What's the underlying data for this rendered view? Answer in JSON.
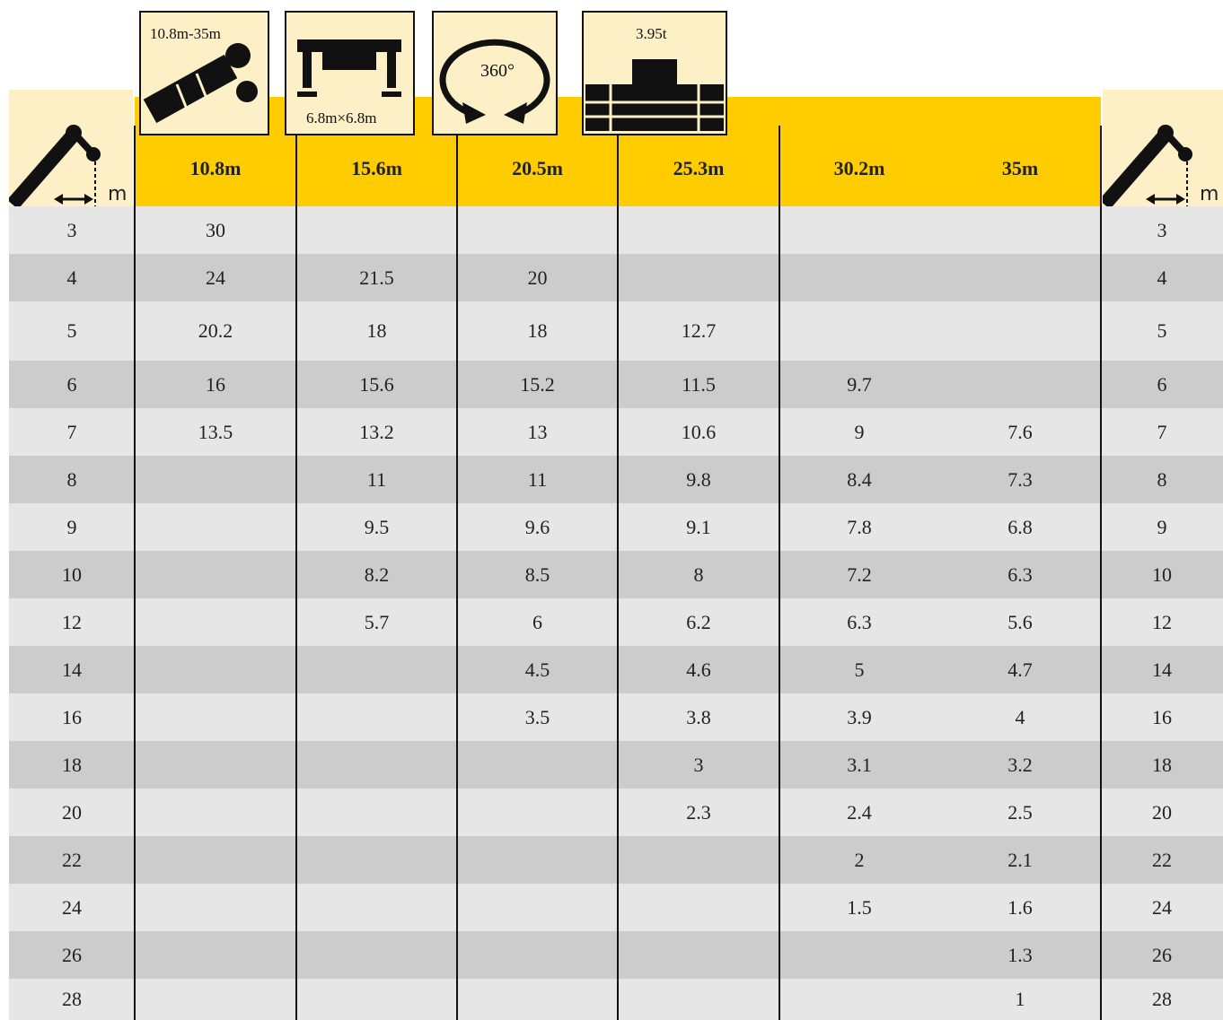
{
  "icons": [
    "10.8m-35m",
    "6.8m×6.8m",
    "360°",
    "3.95t"
  ],
  "unit": "m",
  "table": {
    "columns": [
      "10.8m",
      "15.6m",
      "20.5m",
      "25.3m",
      "30.2m",
      "35m"
    ],
    "rows": [
      {
        "radius": 3,
        "loads": [
          30,
          null,
          null,
          null,
          null,
          null
        ]
      },
      {
        "radius": 4,
        "loads": [
          24,
          21.5,
          20,
          null,
          null,
          null
        ]
      },
      {
        "radius": 5,
        "loads": [
          20.2,
          18,
          18,
          12.7,
          null,
          null
        ]
      },
      {
        "radius": 6,
        "loads": [
          16,
          15.6,
          15.2,
          11.5,
          9.7,
          null
        ]
      },
      {
        "radius": 7,
        "loads": [
          13.5,
          13.2,
          13,
          10.6,
          9,
          7.6
        ]
      },
      {
        "radius": 8,
        "loads": [
          null,
          11,
          11,
          9.8,
          8.4,
          7.3
        ]
      },
      {
        "radius": 9,
        "loads": [
          null,
          9.5,
          9.6,
          9.1,
          7.8,
          6.8
        ]
      },
      {
        "radius": 10,
        "loads": [
          null,
          8.2,
          8.5,
          8,
          7.2,
          6.3
        ]
      },
      {
        "radius": 12,
        "loads": [
          null,
          5.7,
          6,
          6.2,
          6.3,
          5.6
        ]
      },
      {
        "radius": 14,
        "loads": [
          null,
          null,
          4.5,
          4.6,
          5,
          4.7
        ]
      },
      {
        "radius": 16,
        "loads": [
          null,
          null,
          3.5,
          3.8,
          3.9,
          4
        ]
      },
      {
        "radius": 18,
        "loads": [
          null,
          null,
          null,
          3,
          3.1,
          3.2
        ]
      },
      {
        "radius": 20,
        "loads": [
          null,
          null,
          null,
          2.3,
          2.4,
          2.5
        ]
      },
      {
        "radius": 22,
        "loads": [
          null,
          null,
          null,
          null,
          2,
          2.1
        ]
      },
      {
        "radius": 24,
        "loads": [
          null,
          null,
          null,
          null,
          1.5,
          1.6
        ]
      },
      {
        "radius": 26,
        "loads": [
          null,
          null,
          null,
          null,
          null,
          1.3
        ]
      },
      {
        "radius": 28,
        "loads": [
          null,
          null,
          null,
          null,
          null,
          1
        ]
      }
    ]
  }
}
